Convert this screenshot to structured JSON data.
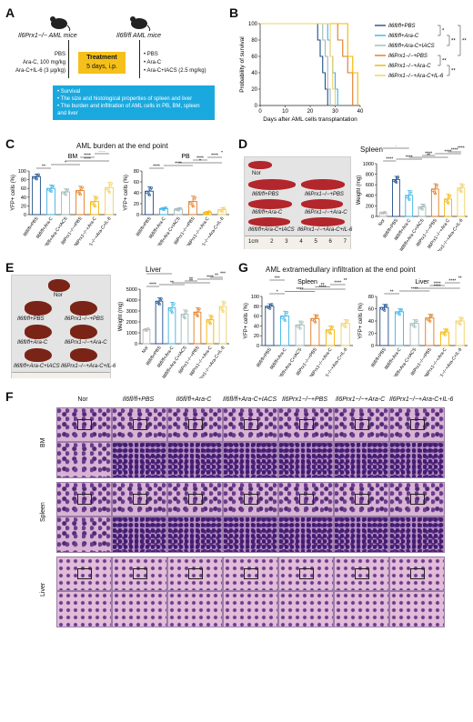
{
  "panels": [
    "A",
    "B",
    "C",
    "D",
    "E",
    "F",
    "G"
  ],
  "panelA": {
    "ko_mice": "Il6Prx1−/− AML mice",
    "fl_mice": "Il6fl/fl AML mice",
    "left_treatments": [
      "PBS",
      "Ara-C, 100 mg/kg",
      "Ara-C+IL-6 (3 μg/kg)"
    ],
    "treatment_box": [
      "Treatment",
      "5 days, i.p."
    ],
    "right_treatments": [
      "PBS",
      "Ara-C",
      "Ara-C+IACS (2.5 mg/kg)"
    ],
    "outcomes": [
      "Survival",
      "The size and histological properties of spleen and liver",
      "The burden and infiltration of AML cells in PB, BM, spleen and liver"
    ]
  },
  "panelB": {
    "chart_data": {
      "type": "line",
      "xlabel": "Days after AML cells transplantation",
      "ylabel": "Probability of survival",
      "xlim": [
        0,
        40
      ],
      "ylim": [
        0,
        100
      ],
      "xticks": [
        0,
        10,
        20,
        30,
        40
      ],
      "yticks": [
        0,
        20,
        40,
        60,
        80,
        100
      ],
      "series": [
        {
          "name": "Il6fl/fl+PBS",
          "color": "#1f4e8c",
          "x": [
            0,
            22,
            23,
            24,
            25,
            26,
            27
          ],
          "y": [
            100,
            100,
            80,
            60,
            40,
            20,
            0
          ]
        },
        {
          "name": "Il6fl/fl+Ara-C",
          "color": "#3cb3e6",
          "x": [
            0,
            26,
            27,
            28,
            29,
            30,
            31
          ],
          "y": [
            100,
            100,
            80,
            60,
            40,
            20,
            0
          ]
        },
        {
          "name": "Il6fl/fl+Ara-C+IACS",
          "color": "#9fb8b8",
          "x": [
            0,
            24,
            25,
            26,
            27,
            28
          ],
          "y": [
            100,
            100,
            80,
            60,
            20,
            0
          ]
        },
        {
          "name": "Il6Prx1−/−+PBS",
          "color": "#e07a1f",
          "x": [
            0,
            29,
            31,
            33,
            35,
            37
          ],
          "y": [
            100,
            100,
            80,
            60,
            40,
            0
          ]
        },
        {
          "name": "Il6Prx1−/−+Ara-C",
          "color": "#f5b400",
          "x": [
            0,
            33,
            35,
            37,
            39
          ],
          "y": [
            100,
            100,
            60,
            40,
            0
          ]
        },
        {
          "name": "Il6Prx1−/−+Ara-C+IL-6",
          "color": "#f0d060",
          "x": [
            0,
            27,
            28,
            29,
            30
          ],
          "y": [
            100,
            100,
            60,
            20,
            0
          ]
        }
      ],
      "legend_placement": "right",
      "significance": [
        "*",
        "**",
        "**",
        "**",
        "**"
      ]
    }
  },
  "panelC": {
    "title": "AML burden at the end point",
    "chart_data": [
      {
        "type": "bar",
        "title": "BM",
        "ylabel": "YFP+ cells (%)",
        "ylim": [
          0,
          100
        ],
        "yticks": [
          0,
          20,
          40,
          60,
          80,
          100
        ],
        "categories": [
          "Il6fl/fl+PBS",
          "Il6fl/fl+Ara-C",
          "Il6fl/fl+Ara-C+IACS",
          "Il6Prx1−/−+PBS",
          "Il6Prx1−/−+Ara-C",
          "Il6Prx1−/−+Ara-C+IL-6"
        ],
        "values": [
          87,
          60,
          52,
          55,
          30,
          62
        ],
        "errors": [
          6,
          8,
          7,
          10,
          12,
          12
        ],
        "colors": [
          "#1f4e8c",
          "#3cb3e6",
          "#9fb8b8",
          "#e07a1f",
          "#f5b400",
          "#f0d060"
        ],
        "significance": [
          "**",
          "*",
          "****",
          "****",
          "****"
        ]
      },
      {
        "type": "bar",
        "title": "PB",
        "ylabel": "YFP+ cells (%)",
        "ylim": [
          0,
          80
        ],
        "yticks": [
          0,
          20,
          40,
          60,
          80
        ],
        "categories": [
          "Il6fl/fl+PBS",
          "Il6fl/fl+Ara-C",
          "Il6fl/fl+Ara-C+IACS",
          "Il6Prx1−/−+PBS",
          "Il6Prx1−/−+Ara-C",
          "Il6Prx1−/−+Ara-C+IL-6"
        ],
        "values": [
          43,
          11,
          10,
          24,
          4,
          9
        ],
        "errors": [
          8,
          2,
          2,
          10,
          2,
          4
        ],
        "colors": [
          "#1f4e8c",
          "#3cb3e6",
          "#9fb8b8",
          "#e07a1f",
          "#f5b400",
          "#f0d060"
        ],
        "significance": [
          "****",
          "****",
          "*",
          "****",
          "****",
          "*",
          "*"
        ]
      }
    ]
  },
  "panelD": {
    "title": "Spleen",
    "photo_labels": [
      "Nor",
      "Il6fl/fl+PBS",
      "Il6Prx1−/−+PBS",
      "Il6fl/fl+Ara-C",
      "Il6Prx1−/−+Ara-C",
      "Il6fl/fl+Ara-C+IACS",
      "Il6Prx1−/−+Ara-C+IL-6"
    ],
    "ruler_ticks": [
      "1cm",
      "2",
      "3",
      "4",
      "5",
      "6",
      "7"
    ],
    "chart_data": {
      "type": "bar",
      "ylabel": "Weight (mg)",
      "ylim": [
        0,
        1000
      ],
      "yticks": [
        0,
        200,
        400,
        600,
        800,
        1000
      ],
      "categories": [
        "Nor",
        "Il6fl/fl+PBS",
        "Il6fl/fl+Ara-C",
        "Il6fl/fl+Ara-C+IACS",
        "Il6Prx1−/−+PBS",
        "Il6Prx1−/−+Ara-C",
        "Il6Prx1−/−+Ara-C+IL-6"
      ],
      "values": [
        70,
        700,
        400,
        180,
        520,
        330,
        540
      ],
      "errors": [
        10,
        60,
        90,
        50,
        100,
        90,
        80
      ],
      "colors": [
        "#bbbbbb",
        "#1f4e8c",
        "#3cb3e6",
        "#9fb8b8",
        "#e07a1f",
        "#f5b400",
        "#f0d060"
      ],
      "significance": [
        "****",
        "****",
        "**",
        "****",
        "****",
        "****",
        "****",
        "*",
        "****",
        "****"
      ]
    }
  },
  "panelE": {
    "title": "Liver",
    "photo_labels": [
      "Nor",
      "Il6fl/fl+PBS",
      "Il6Prx1−/−+PBS",
      "Il6fl/fl+Ara-C",
      "Il6Prx1−/−+Ara-C",
      "Il6fl/fl+Ara-C+IACS",
      "Il6Prx1−/−+Ara-C+IL-6"
    ],
    "chart_data": {
      "type": "bar",
      "ylabel": "Weight (mg)",
      "ylim": [
        0,
        5000
      ],
      "yticks": [
        0,
        1000,
        2000,
        3000,
        4000,
        5000
      ],
      "categories": [
        "Nor",
        "Il6fl/fl+PBS",
        "Il6fl/fl+Ara-C",
        "Il6fl/fl+Ara-C+IACS",
        "Il6Prx1−/−+PBS",
        "Il6Prx1−/−+Ara-C",
        "Il6Prx1−/−+Ara-C+IL-6"
      ],
      "values": [
        1300,
        3900,
        3300,
        2700,
        2900,
        2200,
        3400
      ],
      "errors": [
        100,
        300,
        500,
        400,
        400,
        400,
        500
      ],
      "colors": [
        "#bbbbbb",
        "#1f4e8c",
        "#3cb3e6",
        "#9fb8b8",
        "#e07a1f",
        "#f5b400",
        "#f0d060"
      ],
      "significance": [
        "****",
        "**",
        "**",
        "**",
        "****",
        "**",
        "***",
        "*",
        "**"
      ]
    }
  },
  "panelG": {
    "title": "AML extramedullary infiltration at the end point",
    "chart_data": [
      {
        "type": "bar",
        "title": "Spleen",
        "ylabel": "YFP+ cells (%)",
        "ylim": [
          0,
          100
        ],
        "yticks": [
          0,
          20,
          40,
          60,
          80,
          100
        ],
        "categories": [
          "Il6fl/fl+PBS",
          "Il6fl/fl+Ara-C",
          "Il6fl/fl+Ara-C+IACS",
          "Il6Prx1−/−+PBS",
          "Il6Prx1−/−+Ara-C",
          "Il6Prx1−/−+Ara-C+IL-6"
        ],
        "values": [
          80,
          60,
          42,
          55,
          32,
          45
        ],
        "errors": [
          5,
          10,
          8,
          8,
          8,
          8
        ],
        "colors": [
          "#1f4e8c",
          "#3cb3e6",
          "#9fb8b8",
          "#e07a1f",
          "#f5b400",
          "#f0d060"
        ],
        "significance": [
          "*",
          "****",
          "****",
          "**",
          "****",
          "**",
          "***"
        ]
      },
      {
        "type": "bar",
        "title": "Liver",
        "ylabel": "YFP+ cells (%)",
        "ylim": [
          0,
          80
        ],
        "yticks": [
          0,
          20,
          40,
          60,
          80
        ],
        "categories": [
          "Il6fl/fl+PBS",
          "Il6fl/fl+Ara-C",
          "Il6fl/fl+Ara-C+IACS",
          "Il6Prx1−/−+PBS",
          "Il6Prx1−/−+Ara-C",
          "Il6Prx1−/−+Ara-C+IL-6"
        ],
        "values": [
          62,
          55,
          36,
          45,
          22,
          40
        ],
        "errors": [
          5,
          5,
          6,
          6,
          5,
          6
        ],
        "colors": [
          "#1f4e8c",
          "#3cb3e6",
          "#9fb8b8",
          "#e07a1f",
          "#f5b400",
          "#f0d060"
        ],
        "significance": [
          "**",
          "****",
          "****",
          "****",
          "****",
          "**"
        ]
      }
    ]
  },
  "panelF": {
    "columns": [
      "Nor",
      "Il6fl/fl+PBS",
      "Il6fl/fl+Ara-C",
      "Il6fl/fl+Ara-C+IACS",
      "Il6Prx1−/−+PBS",
      "Il6Prx1−/−+Ara-C",
      "Il6Prx1−/−+Ara-C+IL-6"
    ],
    "rows": [
      "BM",
      "Spleen",
      "Liver"
    ]
  }
}
